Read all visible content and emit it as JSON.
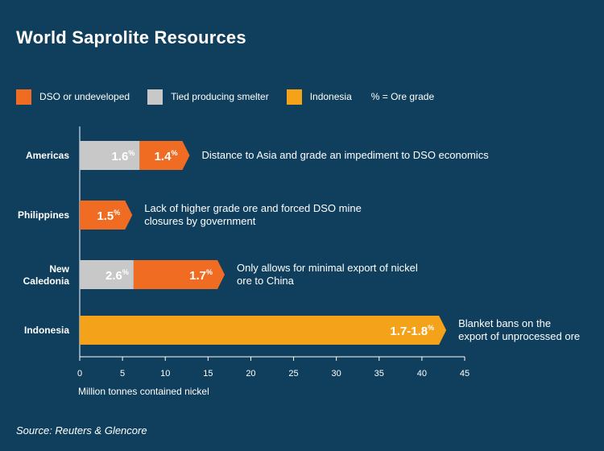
{
  "title": "World Saprolite Resources",
  "legend": {
    "items": [
      {
        "label": "DSO or undeveloped",
        "color": "#f06c23"
      },
      {
        "label": "Tied producing smelter",
        "color": "#c8c8c8"
      },
      {
        "label": "Indonesia",
        "color": "#f5a21b"
      }
    ],
    "note": "% = Ore grade"
  },
  "source": "Source: Reuters & Glencore",
  "chart_data": {
    "type": "bar",
    "orientation": "horizontal",
    "stacked": true,
    "xlabel": "Million tonnes contained nickel",
    "xlim": [
      0,
      45
    ],
    "xticks": [
      "0",
      "5",
      "10",
      "15",
      "20",
      "25",
      "30",
      "35",
      "40",
      "45"
    ],
    "categories": [
      {
        "label": [
          "Americas"
        ],
        "annotation": [
          "Distance to Asia and grade an impediment to DSO economics"
        ]
      },
      {
        "label": [
          "Philippines"
        ],
        "annotation": [
          "Lack of higher grade ore and forced DSO mine",
          "closures by government"
        ]
      },
      {
        "label": [
          "New",
          "Caledonia"
        ],
        "annotation": [
          "Only allows for minimal export of nickel",
          "ore to China"
        ]
      },
      {
        "label": [
          "Indonesia"
        ],
        "annotation": [
          "Blanket bans on the",
          "export of unprocessed ore"
        ]
      }
    ],
    "series": [
      {
        "name": "Tied producing smelter",
        "color": "#c8c8c8",
        "values": [
          7,
          0,
          6.3,
          0
        ],
        "grades": [
          "1.6",
          "",
          "2.6",
          ""
        ]
      },
      {
        "name": "DSO or undeveloped",
        "color": "#f06c23",
        "values": [
          5,
          5.3,
          9.8,
          0
        ],
        "grades": [
          "1.4",
          "1.5",
          "1.7",
          ""
        ]
      },
      {
        "name": "Indonesia",
        "color": "#f5a21b",
        "values": [
          0,
          0,
          0,
          42
        ],
        "grades": [
          "",
          "",
          "",
          "1.7-1.8"
        ]
      }
    ],
    "grade_unit": "%"
  }
}
